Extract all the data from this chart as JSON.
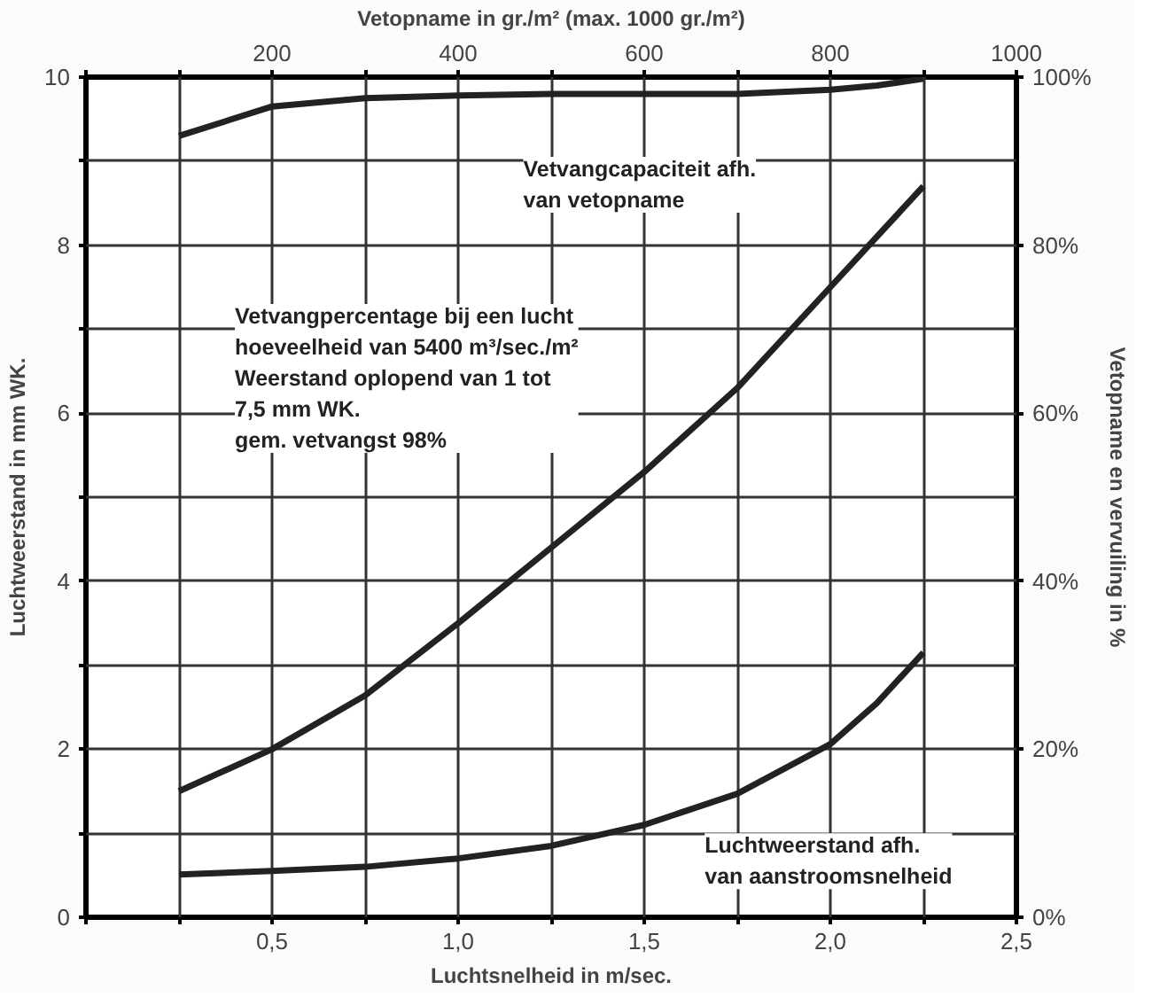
{
  "chart_data": {
    "type": "line",
    "xlabel": "Luchtsnelheid in m/sec.",
    "x2label": "Vetopname in gr./m² (max. 1000 gr./m²)",
    "ylabel": "Luchtweerstand in mm WK.",
    "y2label": "Vetopname en vervuiling in %",
    "x": [
      0.25,
      0.5,
      0.75,
      1.0,
      1.25,
      1.5,
      1.75,
      2.0,
      2.125,
      2.25
    ],
    "series": [
      {
        "color": "#222222",
        "values": [
          9.3,
          9.65,
          9.75,
          9.78,
          9.8,
          9.8,
          9.8,
          9.85,
          9.9,
          9.98
        ]
      },
      {
        "color": "#222222",
        "values": [
          1.5,
          2.0,
          2.64,
          3.5,
          4.4,
          5.3,
          6.3,
          7.5,
          8.1,
          8.7
        ]
      },
      {
        "color": "#222222",
        "values": [
          0.51,
          0.55,
          0.6,
          0.7,
          0.85,
          1.1,
          1.47,
          2.06,
          2.55,
          3.15
        ]
      }
    ],
    "xlim": [
      0,
      2.5
    ],
    "ylim": [
      0,
      10
    ],
    "x2lim": [
      0,
      1000
    ],
    "y2lim": [
      0,
      100
    ],
    "xticks": [
      {
        "value": 0,
        "label": null
      },
      {
        "value": 0.25,
        "label": null
      },
      {
        "value": 0.5,
        "label": "0,5"
      },
      {
        "value": 0.75,
        "label": null
      },
      {
        "value": 1.0,
        "label": "1,0"
      },
      {
        "value": 1.25,
        "label": null
      },
      {
        "value": 1.5,
        "label": "1,5"
      },
      {
        "value": 1.75,
        "label": null
      },
      {
        "value": 2.0,
        "label": "2,0"
      },
      {
        "value": 2.25,
        "label": null
      },
      {
        "value": 2.5,
        "label": "2,5"
      }
    ],
    "yticks": [
      0,
      {
        "value": 1,
        "label": null
      },
      2,
      {
        "value": 3,
        "label": null
      },
      4,
      {
        "value": 5,
        "label": null
      },
      6,
      {
        "value": 7,
        "label": null
      },
      8,
      {
        "value": 9,
        "label": null
      },
      10
    ],
    "x2ticks": [
      {
        "value": 0,
        "label": null
      },
      {
        "value": 100,
        "label": null
      },
      200,
      {
        "value": 300,
        "label": null
      },
      400,
      {
        "value": 500,
        "label": null
      },
      600,
      {
        "value": 700,
        "label": null
      },
      800,
      {
        "value": 900,
        "label": null
      },
      1000
    ],
    "y2ticks": [
      {
        "value": 0,
        "label": "0%"
      },
      {
        "value": 20,
        "label": "20%"
      },
      {
        "value": 40,
        "label": "40%"
      },
      {
        "value": 60,
        "label": "60%"
      },
      {
        "value": 80,
        "label": "80%"
      },
      {
        "value": 100,
        "label": "100%"
      }
    ],
    "annotations": [
      "Vetvangcapaciteit afh.\nvan vetopname",
      "Vetvangpercentage bij een lucht\nhoeveelheid van 5400 m³/sec./m²\nWeerstand oplopend van 1 tot\n7,5 mm WK.\ngem. vetvangst 98%",
      "Luchtweerstand afh.\nvan aanstroomsnelheid"
    ],
    "grid": true,
    "line_style": "solid"
  }
}
